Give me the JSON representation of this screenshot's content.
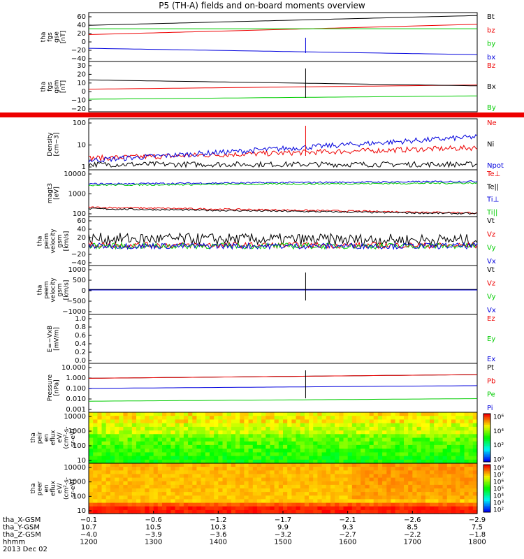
{
  "title": "P5 (TH-A) fields and on-board moments overview",
  "colors": {
    "black": "#000000",
    "red": "#ee0000",
    "green": "#00cc00",
    "blue": "#0000dd"
  },
  "panels": [
    {
      "id": "fgs-gse",
      "ylabel": [
        "tha",
        "fgs",
        "gse",
        "[nT]"
      ],
      "ticks": [
        "60",
        "40",
        "20",
        "0",
        "−20",
        "−40"
      ],
      "legend": [
        {
          "t": "Bt",
          "c": "black"
        },
        {
          "t": "bz",
          "c": "red"
        },
        {
          "t": "by",
          "c": "green"
        },
        {
          "t": "bx",
          "c": "blue"
        }
      ]
    },
    {
      "id": "fgs-gsm",
      "ylabel": [
        "tha",
        "fgs",
        "gsm",
        "[nT]"
      ],
      "ticks": [
        "30",
        "20",
        "10",
        "0",
        "−10",
        "−20"
      ],
      "legend": [
        {
          "t": "Bz",
          "c": "red"
        },
        {
          "t": "Bx",
          "c": "black"
        },
        {
          "t": "By",
          "c": "green"
        }
      ]
    },
    {
      "id": "density",
      "ylabel": [
        "Density",
        "[cm−3]"
      ],
      "ticks": [
        "100",
        "10",
        "1"
      ],
      "legend": [
        {
          "t": "Ne",
          "c": "red"
        },
        {
          "t": "Ni",
          "c": "black"
        },
        {
          "t": "Npot",
          "c": "blue"
        }
      ]
    },
    {
      "id": "temp",
      "ylabel": [
        "magt3",
        "[eV]"
      ],
      "ticks": [
        "10000",
        "1000",
        "100"
      ],
      "legend": [
        {
          "t": "Te⊥",
          "c": "red"
        },
        {
          "t": "Te||",
          "c": "black"
        },
        {
          "t": "Ti⊥",
          "c": "blue"
        },
        {
          "t": "Ti||",
          "c": "green"
        }
      ]
    },
    {
      "id": "peim",
      "ylabel": [
        "tha",
        "peim",
        "velocity",
        "gsm",
        "[km/s]"
      ],
      "ticks": [
        "60",
        "40",
        "20",
        "0",
        "−20",
        "−40"
      ],
      "legend": [
        {
          "t": "Vt",
          "c": "black"
        },
        {
          "t": "Vz",
          "c": "red"
        },
        {
          "t": "Vy",
          "c": "green"
        },
        {
          "t": "Vx",
          "c": "blue"
        }
      ]
    },
    {
      "id": "peem",
      "ylabel": [
        "tha",
        "peem",
        "velocity",
        "gsm",
        "[km/s]"
      ],
      "ticks": [
        "1000",
        "500",
        "0",
        "−500",
        "−1000"
      ],
      "legend": [
        {
          "t": "Vt",
          "c": "black"
        },
        {
          "t": "Vz",
          "c": "red"
        },
        {
          "t": "Vy",
          "c": "green"
        },
        {
          "t": "Vx",
          "c": "blue"
        }
      ]
    },
    {
      "id": "efield",
      "ylabel": [
        "E=−VxB",
        "[mV/m]"
      ],
      "ticks": [
        "1.0",
        "0.8",
        "0.6",
        "0.4",
        "0.2",
        "0.0"
      ],
      "legend": [
        {
          "t": "Ez",
          "c": "red"
        },
        {
          "t": "Ey",
          "c": "green"
        },
        {
          "t": "Ex",
          "c": "blue"
        }
      ]
    },
    {
      "id": "pressure",
      "ylabel": [
        "Pressure",
        "[nPa]"
      ],
      "ticks": [
        "10.000",
        "1.000",
        "0.100",
        "0.010",
        "0.001"
      ],
      "legend": [
        {
          "t": "Pt",
          "c": "black"
        },
        {
          "t": "Pb",
          "c": "red"
        },
        {
          "t": "Pe",
          "c": "green"
        },
        {
          "t": "Pi",
          "c": "blue"
        }
      ]
    },
    {
      "id": "peir",
      "ylabel": [
        "tha",
        "peir",
        "en",
        "eflux",
        "eV/",
        "(cm²-s-",
        "sr-eV)"
      ],
      "ticks": [
        "10000",
        "1000",
        "100",
        "10"
      ],
      "legend": []
    },
    {
      "id": "peer",
      "ylabel": [
        "tha",
        "peer",
        "en",
        "eflux",
        "eV/",
        "(cm²-s-",
        "sr-eV)"
      ],
      "ticks": [
        "10000",
        "1000",
        "100",
        "10"
      ],
      "legend": []
    }
  ],
  "colorbars": [
    {
      "labels": [
        "10⁶",
        "10⁴",
        "10²",
        "10⁰"
      ]
    },
    {
      "labels": [
        "10⁸",
        "10⁷",
        "10⁶",
        "10⁵",
        "10⁴",
        "10³",
        "10²"
      ]
    }
  ],
  "xaxis": {
    "rows": [
      {
        "label": "tha_X-GSM",
        "values": [
          "−0.1",
          "−0.6",
          "−1.2",
          "−1.7",
          "−2.1",
          "−2.6",
          "−2.9"
        ]
      },
      {
        "label": "tha_Y-GSM",
        "values": [
          "10.7",
          "10.5",
          "10.3",
          "9.9",
          "9.3",
          "8.5",
          "7.5"
        ]
      },
      {
        "label": "tha_Z-GSM",
        "values": [
          "−4.0",
          "−3.9",
          "−3.6",
          "−3.2",
          "−2.7",
          "−2.2",
          "−1.8"
        ]
      },
      {
        "label": "hhmm",
        "values": [
          "1200",
          "1300",
          "1400",
          "1500",
          "1600",
          "1700",
          "1800"
        ]
      }
    ],
    "date": "2013 Dec 02"
  },
  "chart_data": {
    "type": "line",
    "title": "P5 (TH-A) fields and on-board moments overview",
    "x": {
      "label": "hhmm",
      "ticks": [
        1200,
        1300,
        1400,
        1500,
        1600,
        1700,
        1800
      ]
    },
    "subplots": [
      {
        "ylabel": "tha fgs gse [nT]",
        "ylim": [
          -40,
          60
        ],
        "series": [
          {
            "name": "Bt",
            "start": 34,
            "end": 54
          },
          {
            "name": "bz",
            "start": 15,
            "end": 36
          },
          {
            "name": "by",
            "start": 27,
            "end": 27
          },
          {
            "name": "bx",
            "start": -13,
            "end": -26
          }
        ]
      },
      {
        "ylabel": "tha fgs gsm [nT]",
        "ylim": [
          -25,
          35
        ],
        "series": [
          {
            "name": "Bz",
            "start": 2,
            "end": 7
          },
          {
            "name": "Bx",
            "start": 13,
            "end": 6
          },
          {
            "name": "By",
            "start": -10,
            "end": -6
          }
        ]
      },
      {
        "ylabel": "Density [cm-3]",
        "scale": "log",
        "ylim": [
          0.3,
          200
        ],
        "series": [
          {
            "name": "Ne",
            "start": 1.3,
            "end": 5
          },
          {
            "name": "Ni",
            "start": 0.6,
            "end": 0.6
          },
          {
            "name": "Npot",
            "start": 1.0,
            "end": 20
          }
        ]
      },
      {
        "ylabel": "magt3 [eV]",
        "scale": "log",
        "ylim": [
          30,
          20000
        ],
        "series": [
          {
            "name": "Te⊥",
            "start": 110,
            "end": 50
          },
          {
            "name": "Te||",
            "start": 90,
            "end": 45
          },
          {
            "name": "Ti⊥",
            "start": 2800,
            "end": 4000
          },
          {
            "name": "Ti||",
            "start": 2400,
            "end": 3200
          }
        ]
      },
      {
        "ylabel": "tha peim velocity gsm [km/s]",
        "ylim": [
          -40,
          60
        ],
        "series": [
          {
            "name": "Vt",
            "start": 15,
            "end": 12
          },
          {
            "name": "Vz",
            "start": 2,
            "end": 1
          },
          {
            "name": "Vy",
            "start": 0,
            "end": 0
          },
          {
            "name": "Vx",
            "start": 0,
            "end": 0
          }
        ]
      },
      {
        "ylabel": "tha peem velocity gsm [km/s]",
        "ylim": [
          -1000,
          1000
        ],
        "series": [
          {
            "name": "Vt",
            "start": 20,
            "end": 20
          },
          {
            "name": "Vz",
            "start": 0,
            "end": 0
          },
          {
            "name": "Vy",
            "start": 0,
            "end": 0
          },
          {
            "name": "Vx",
            "start": 0,
            "end": 0
          }
        ]
      },
      {
        "ylabel": "E=-VxB [mV/m]",
        "ylim": [
          0,
          1
        ],
        "series": []
      },
      {
        "ylabel": "Pressure [nPa]",
        "scale": "log",
        "ylim": [
          0.001,
          10
        ],
        "series": [
          {
            "name": "Pt",
            "start": 0.6,
            "end": 1.2
          },
          {
            "name": "Pb",
            "start": 0.6,
            "end": 1.2
          },
          {
            "name": "Pe",
            "start": 0.008,
            "end": 0.013
          },
          {
            "name": "Pi",
            "start": 0.09,
            "end": 0.15
          }
        ]
      },
      {
        "ylabel": "tha peir en eflux",
        "type": "heatmap",
        "scale": "log",
        "ylim": [
          5,
          20000
        ]
      },
      {
        "ylabel": "tha peer en eflux",
        "type": "heatmap",
        "scale": "log",
        "ylim": [
          5,
          20000
        ]
      }
    ]
  }
}
